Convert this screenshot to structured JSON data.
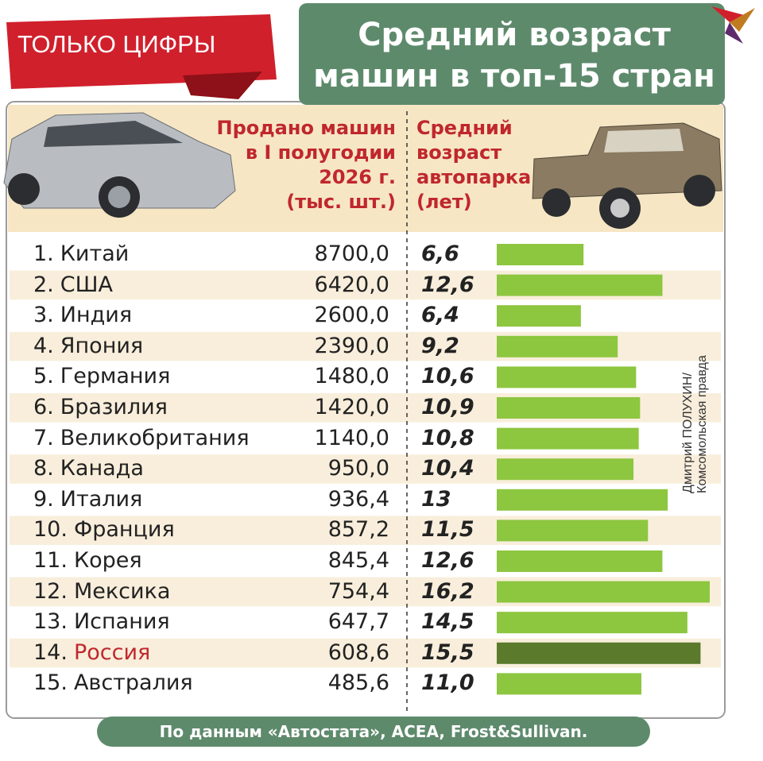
{
  "chart_data": {
    "type": "bar",
    "tag": "ТОЛЬКО ЦИФРЫ",
    "title": "Средний возраст\nмашин в топ-15 стран",
    "ranks": [
      "1.",
      "2.",
      "3.",
      "4.",
      "5.",
      "6.",
      "7.",
      "8.",
      "9.",
      "10.",
      "11.",
      "12.",
      "13.",
      "14.",
      "15."
    ],
    "categories": [
      "Китай",
      "США",
      "Индия",
      "Япония",
      "Германия",
      "Бразилия",
      "Великобритания",
      "Канада",
      "Италия",
      "Франция",
      "Корея",
      "Мексика",
      "Испания",
      "Россия",
      "Австралия"
    ],
    "series": [
      {
        "name": "Продано машин\nв I полугодии\n2026 г.\n(тыс. шт.)",
        "values": [
          8700.0,
          6420.0,
          2600.0,
          2390.0,
          1480.0,
          1420.0,
          1140.0,
          950.0,
          936.4,
          857.2,
          845.4,
          754.4,
          647.7,
          608.6,
          485.6
        ],
        "value_labels": [
          "8700,0",
          "6420,0",
          "2600,0",
          "2390,0",
          "1480,0",
          "1420,0",
          "1140,0",
          "950,0",
          "936,4",
          "857,2",
          "845,4",
          "754,4",
          "647,7",
          "608,6",
          "485,6"
        ]
      },
      {
        "name": "Средний\nвозраст\nавтопарка\n(лет)",
        "values": [
          6.6,
          12.6,
          6.4,
          9.2,
          10.6,
          10.9,
          10.8,
          10.4,
          13,
          11.5,
          12.6,
          16.2,
          14.5,
          15.5,
          11.0
        ],
        "value_labels": [
          "6,6",
          "12,6",
          "6,4",
          "9,2",
          "10,6",
          "10,9",
          "10,8",
          "10,4",
          "13",
          "11,5",
          "12,6",
          "16,2",
          "14,5",
          "15,5",
          "11,0"
        ],
        "color": "#8dc63f",
        "highlight_color": "#5b7a2c"
      }
    ],
    "highlight_index": 13,
    "highlight_text_color": "#c0272d",
    "xlim": [
      0,
      16.2
    ],
    "credit": "Дмитрий ПОЛУХИН/\nКомсомольская правда",
    "source": "По данным «Автостата», ACEA, Frost&Sullivan."
  }
}
